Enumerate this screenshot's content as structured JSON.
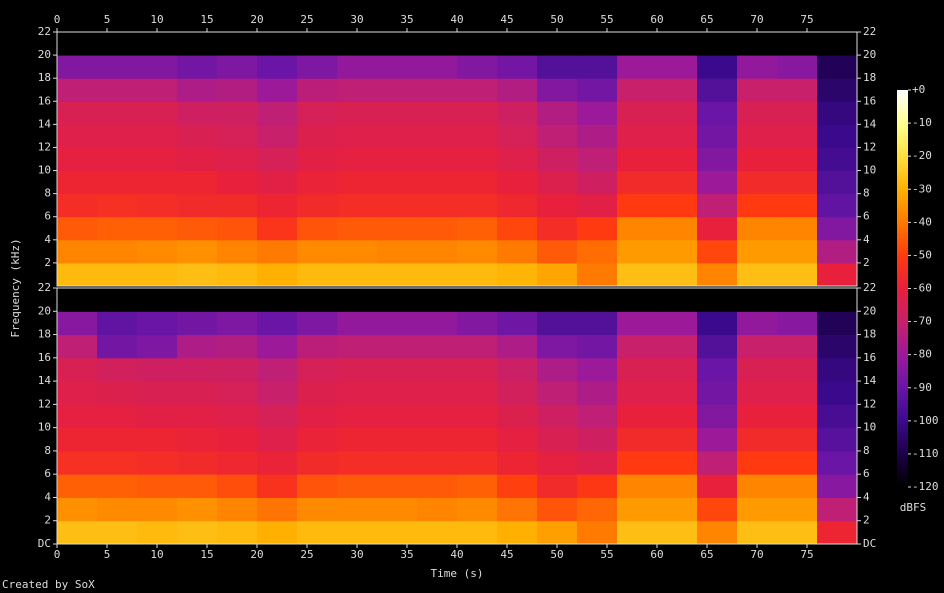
{
  "chart_data": {
    "type": "heatmap",
    "xlabel": "Time (s)",
    "ylabel": "Frequency (kHz)",
    "colorbar_label": "dBFS",
    "credit": "Created by SoX",
    "xlim": [
      0,
      80
    ],
    "xticks": [
      0,
      5,
      10,
      15,
      20,
      25,
      30,
      35,
      40,
      45,
      50,
      55,
      60,
      65,
      70,
      75
    ],
    "x": [
      0,
      4,
      8,
      12,
      16,
      20,
      24,
      28,
      32,
      36,
      40,
      44,
      48,
      52,
      56,
      60,
      64,
      68,
      72,
      76,
      80
    ],
    "zlim": [
      -120,
      0
    ],
    "zticks": [
      {
        "value": 0,
        "label": "+0"
      },
      -10,
      -20,
      -30,
      -40,
      -50,
      -60,
      -70,
      -80,
      -90,
      -100,
      -110,
      -120
    ],
    "colors": [
      "#000000",
      "#1c0049",
      "#3b0a8c",
      "#6a15a6",
      "#9c1a9a",
      "#c8206a",
      "#e8203c",
      "#ff3a10",
      "#ff7a00",
      "#ffb000",
      "#ffe040",
      "#ffff90",
      "#ffffff"
    ],
    "channels": [
      {
        "ylim": [
          0,
          22
        ],
        "yticks": [
          2,
          4,
          6,
          8,
          10,
          12,
          14,
          16,
          18,
          20,
          22
        ],
        "y": [
          0,
          2,
          4,
          6,
          8,
          10,
          12,
          14,
          16,
          18,
          20,
          22
        ],
        "values": [
          [
            -28,
            -28,
            -28,
            -27,
            -28,
            -30,
            -28,
            -28,
            -28,
            -28,
            -28,
            -29,
            -32,
            -40,
            -27,
            -27,
            -38,
            -27,
            -27,
            -60
          ],
          [
            -38,
            -38,
            -37,
            -36,
            -38,
            -40,
            -37,
            -37,
            -38,
            -38,
            -37,
            -40,
            -45,
            -42,
            -34,
            -34,
            -48,
            -34,
            -34,
            -75
          ],
          [
            -45,
            -44,
            -44,
            -45,
            -46,
            -52,
            -46,
            -45,
            -45,
            -45,
            -44,
            -48,
            -55,
            -50,
            -38,
            -38,
            -60,
            -38,
            -38,
            -85
          ],
          [
            -55,
            -54,
            -55,
            -56,
            -56,
            -58,
            -56,
            -55,
            -55,
            -55,
            -55,
            -57,
            -60,
            -62,
            -50,
            -50,
            -72,
            -50,
            -50,
            -92
          ],
          [
            -58,
            -58,
            -58,
            -58,
            -60,
            -62,
            -59,
            -58,
            -58,
            -58,
            -58,
            -60,
            -64,
            -68,
            -56,
            -56,
            -80,
            -56,
            -56,
            -95
          ],
          [
            -61,
            -61,
            -61,
            -62,
            -63,
            -66,
            -62,
            -61,
            -61,
            -61,
            -61,
            -63,
            -68,
            -72,
            -60,
            -60,
            -85,
            -60,
            -60,
            -98
          ],
          [
            -63,
            -63,
            -63,
            -65,
            -66,
            -70,
            -64,
            -63,
            -63,
            -63,
            -63,
            -66,
            -72,
            -76,
            -63,
            -63,
            -88,
            -63,
            -63,
            -100
          ],
          [
            -65,
            -65,
            -65,
            -68,
            -68,
            -72,
            -66,
            -65,
            -65,
            -65,
            -65,
            -68,
            -75,
            -80,
            -65,
            -65,
            -90,
            -65,
            -65,
            -102
          ],
          [
            -72,
            -72,
            -72,
            -76,
            -75,
            -80,
            -73,
            -72,
            -72,
            -72,
            -72,
            -75,
            -85,
            -88,
            -70,
            -70,
            -95,
            -70,
            -70,
            -105
          ],
          [
            -85,
            -85,
            -85,
            -88,
            -86,
            -90,
            -86,
            -82,
            -82,
            -82,
            -85,
            -88,
            -95,
            -95,
            -80,
            -80,
            -100,
            -82,
            -84,
            -108
          ],
          [
            -120,
            -120,
            -120,
            -120,
            -120,
            -120,
            -120,
            -120,
            -120,
            -120,
            -120,
            -120,
            -120,
            -120,
            -120,
            -120,
            -120,
            -120,
            -120,
            -120
          ]
        ]
      },
      {
        "ylim": [
          0,
          22
        ],
        "yticks": [
          {
            "value": 0,
            "label": "DC"
          },
          2,
          4,
          6,
          8,
          10,
          12,
          14,
          16,
          18,
          20,
          22
        ],
        "y": [
          0,
          2,
          4,
          6,
          8,
          10,
          12,
          14,
          16,
          18,
          20,
          22
        ],
        "values": [
          [
            -27,
            -27,
            -28,
            -27,
            -28,
            -30,
            -28,
            -28,
            -28,
            -28,
            -28,
            -30,
            -33,
            -40,
            -27,
            -27,
            -38,
            -27,
            -27,
            -58
          ],
          [
            -36,
            -37,
            -37,
            -36,
            -38,
            -41,
            -37,
            -37,
            -37,
            -38,
            -37,
            -41,
            -46,
            -43,
            -34,
            -34,
            -48,
            -34,
            -34,
            -72
          ],
          [
            -44,
            -44,
            -45,
            -45,
            -47,
            -53,
            -46,
            -45,
            -45,
            -45,
            -44,
            -49,
            -56,
            -51,
            -38,
            -38,
            -60,
            -38,
            -38,
            -84
          ],
          [
            -54,
            -54,
            -55,
            -56,
            -57,
            -59,
            -56,
            -55,
            -55,
            -55,
            -55,
            -58,
            -61,
            -63,
            -50,
            -50,
            -72,
            -50,
            -50,
            -90
          ],
          [
            -58,
            -58,
            -58,
            -59,
            -60,
            -63,
            -59,
            -58,
            -58,
            -58,
            -58,
            -61,
            -65,
            -68,
            -56,
            -56,
            -80,
            -56,
            -56,
            -94
          ],
          [
            -61,
            -61,
            -62,
            -62,
            -63,
            -66,
            -62,
            -61,
            -61,
            -61,
            -61,
            -64,
            -68,
            -72,
            -60,
            -60,
            -85,
            -60,
            -60,
            -97
          ],
          [
            -63,
            -64,
            -65,
            -65,
            -66,
            -70,
            -64,
            -63,
            -63,
            -63,
            -63,
            -67,
            -72,
            -76,
            -63,
            -63,
            -88,
            -63,
            -63,
            -100
          ],
          [
            -65,
            -67,
            -68,
            -68,
            -68,
            -72,
            -66,
            -65,
            -65,
            -65,
            -65,
            -69,
            -76,
            -80,
            -65,
            -65,
            -90,
            -65,
            -65,
            -102
          ],
          [
            -72,
            -88,
            -86,
            -76,
            -75,
            -80,
            -73,
            -72,
            -72,
            -72,
            -72,
            -76,
            -86,
            -88,
            -70,
            -70,
            -95,
            -70,
            -70,
            -105
          ],
          [
            -84,
            -92,
            -90,
            -88,
            -86,
            -90,
            -86,
            -82,
            -82,
            -82,
            -85,
            -89,
            -95,
            -95,
            -80,
            -80,
            -100,
            -82,
            -84,
            -108
          ],
          [
            -120,
            -120,
            -120,
            -120,
            -120,
            -120,
            -120,
            -120,
            -120,
            -120,
            -120,
            -120,
            -120,
            -120,
            -120,
            -120,
            -120,
            -120,
            -120,
            -120
          ]
        ]
      }
    ]
  }
}
